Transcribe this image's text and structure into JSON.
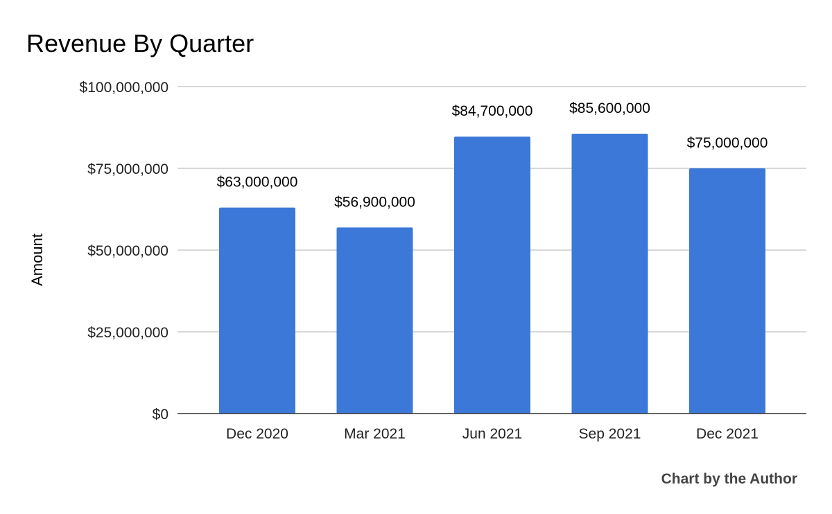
{
  "chart_data": {
    "type": "bar",
    "title": "Revenue By Quarter",
    "ylabel": "Amount",
    "xlabel": "",
    "categories": [
      "Dec 2020",
      "Mar 2021",
      "Jun 2021",
      "Sep 2021",
      "Dec 2021"
    ],
    "values": [
      63000000,
      56900000,
      84700000,
      85600000,
      75000000
    ],
    "data_labels": [
      "$63,000,000",
      "$56,900,000",
      "$84,700,000",
      "$85,600,000",
      "$75,000,000"
    ],
    "ylim": [
      0,
      100000000
    ],
    "yticks": [
      0,
      25000000,
      50000000,
      75000000,
      100000000
    ],
    "ytick_labels": [
      "$0",
      "$25,000,000",
      "$50,000,000",
      "$75,000,000",
      "$100,000,000"
    ],
    "grid": true,
    "legend": "none",
    "bar_color": "#3c78d8"
  },
  "footer": {
    "credit": "Chart by the Author"
  }
}
